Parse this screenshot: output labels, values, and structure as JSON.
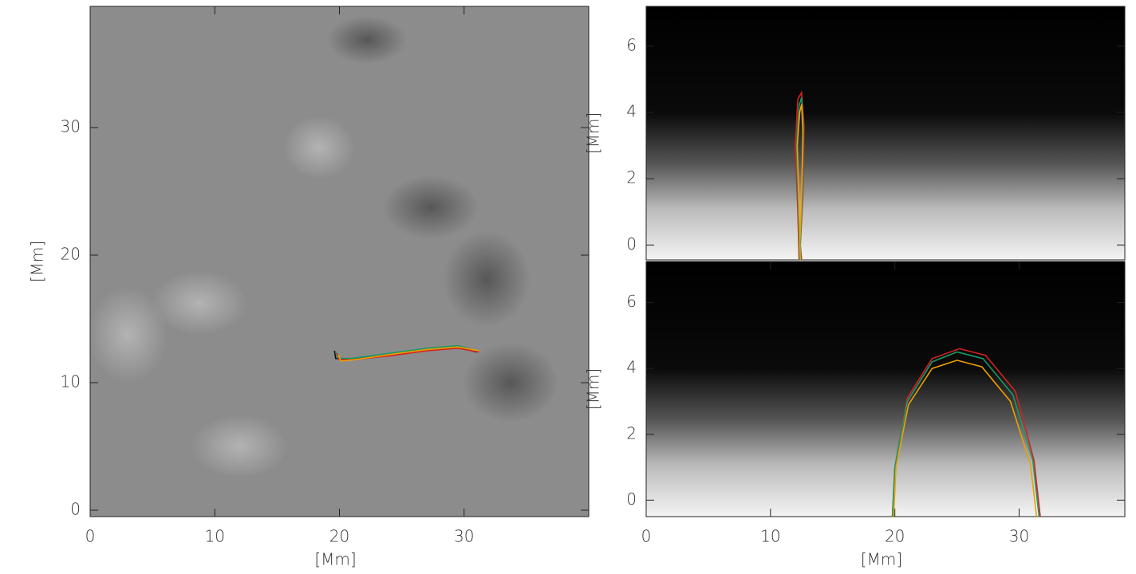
{
  "chart_data": [
    {
      "type": "line",
      "xlabel": "[Mm]",
      "ylabel": "[Mm]",
      "xlim": [
        0,
        40
      ],
      "ylim": [
        -0.5,
        39.5
      ],
      "xticks": [
        0,
        10,
        20,
        30
      ],
      "yticks": [
        0,
        10,
        20,
        30
      ],
      "series": [
        {
          "color": "#111111",
          "x": [
            19.6,
            19.7,
            21,
            24,
            27,
            29.5,
            31
          ],
          "values": [
            12.5,
            11.9,
            11.8,
            12.2,
            12.6,
            12.8,
            12.4
          ]
        },
        {
          "color": "#1a9a6a",
          "x": [
            19.7,
            19.9,
            21,
            24,
            27,
            29.5,
            31.1
          ],
          "values": [
            12.4,
            11.9,
            11.9,
            12.3,
            12.7,
            12.9,
            12.5
          ]
        },
        {
          "color": "#d62020",
          "x": [
            19.8,
            20,
            21,
            24,
            27,
            29.5,
            31.2
          ],
          "values": [
            12.3,
            11.8,
            11.8,
            12.1,
            12.5,
            12.7,
            12.4
          ]
        },
        {
          "color": "#f0a000",
          "x": [
            19.9,
            20.1,
            21.2,
            24,
            27,
            29.5,
            31.2
          ],
          "values": [
            12.2,
            11.7,
            11.8,
            12.2,
            12.6,
            12.8,
            12.5
          ]
        }
      ]
    },
    {
      "type": "line",
      "ylabel": "[Mm]",
      "xlim": [
        0,
        38.5
      ],
      "ylim": [
        -0.45,
        7.2
      ],
      "yticks": [
        0,
        2,
        4,
        6
      ],
      "series": [
        {
          "color": "#d62020",
          "x": [
            12.3,
            12.2,
            12.0,
            12.2,
            12.5,
            12.7,
            12.6,
            12.4,
            12.5
          ],
          "values": [
            -0.45,
            1,
            3,
            4.4,
            4.6,
            3.6,
            1.5,
            0,
            -0.45
          ]
        },
        {
          "color": "#1a9a6a",
          "x": [
            12.35,
            12.25,
            12.1,
            12.3,
            12.5,
            12.65,
            12.55,
            12.4,
            12.45
          ],
          "values": [
            -0.45,
            1,
            3,
            4.2,
            4.45,
            3.5,
            1.5,
            0,
            -0.45
          ]
        },
        {
          "color": "#f0a000",
          "x": [
            12.4,
            12.3,
            12.15,
            12.35,
            12.5,
            12.6,
            12.5,
            12.35,
            12.4
          ],
          "values": [
            -0.45,
            1,
            3,
            4.0,
            4.25,
            3.4,
            1.4,
            0,
            -0.45
          ]
        }
      ]
    },
    {
      "type": "line",
      "xlabel": "[Mm]",
      "ylabel": "[Mm]",
      "xlim": [
        0,
        38.5
      ],
      "ylim": [
        -0.5,
        7.25
      ],
      "xticks": [
        0,
        10,
        20,
        30
      ],
      "yticks": [
        0,
        2,
        4,
        6
      ],
      "series": [
        {
          "color": "#d62020",
          "x": [
            19.8,
            20,
            21,
            23,
            25.2,
            27.3,
            29.7,
            31.2,
            31.7
          ],
          "values": [
            -0.5,
            1,
            3.1,
            4.3,
            4.6,
            4.4,
            3.3,
            1.2,
            -0.5
          ]
        },
        {
          "color": "#1a9a6a",
          "x": [
            19.8,
            20,
            21,
            23,
            25,
            27.1,
            29.5,
            31.1,
            31.6
          ],
          "values": [
            -0.5,
            1,
            3.0,
            4.2,
            4.5,
            4.3,
            3.2,
            1.2,
            -0.5
          ]
        },
        {
          "color": "#f0a000",
          "x": [
            19.9,
            20.1,
            21.1,
            23,
            25,
            27,
            29.3,
            30.9,
            31.4
          ],
          "values": [
            -0.5,
            1,
            2.9,
            4.0,
            4.25,
            4.05,
            3.0,
            1.1,
            -0.5
          ]
        }
      ]
    }
  ]
}
